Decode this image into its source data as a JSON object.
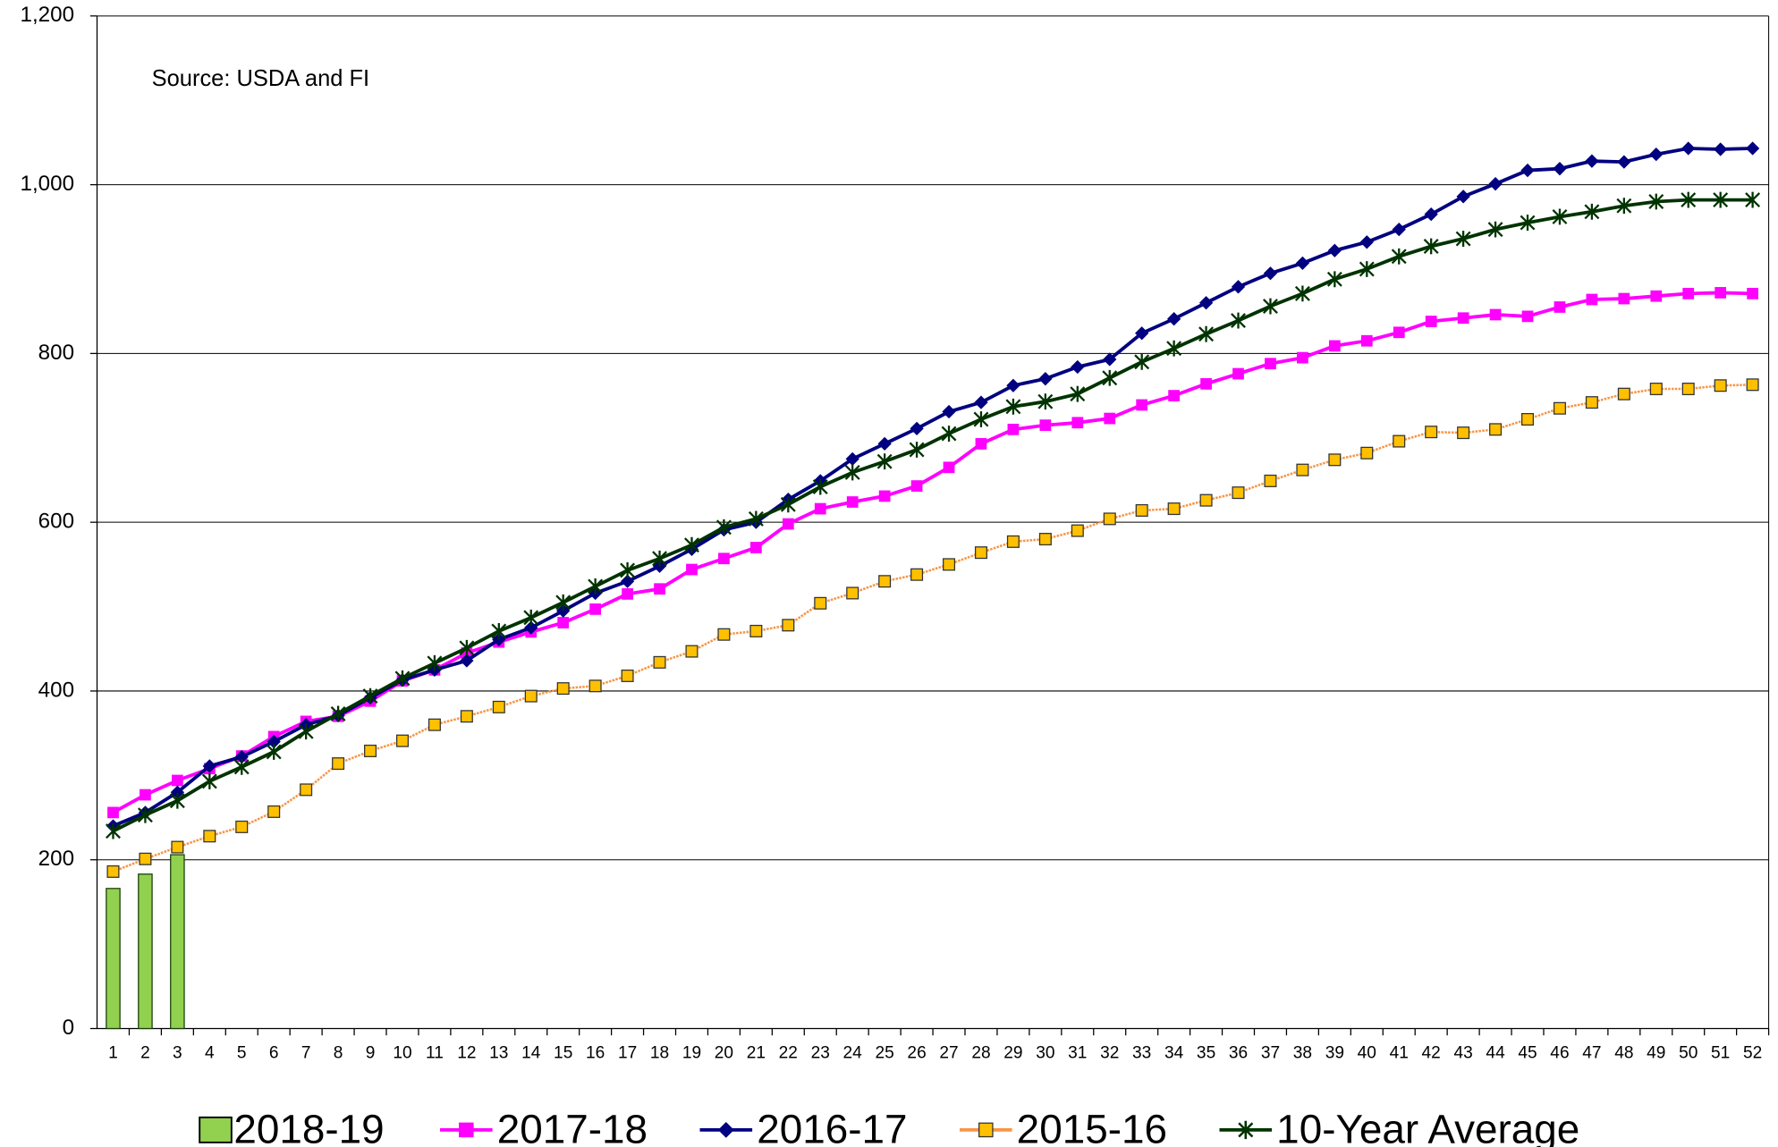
{
  "chart_data": {
    "type": "line",
    "annotation": "Source: USDA and FI",
    "categories": [
      "1",
      "2",
      "3",
      "4",
      "5",
      "6",
      "7",
      "8",
      "9",
      "10",
      "11",
      "12",
      "13",
      "14",
      "15",
      "16",
      "17",
      "18",
      "19",
      "20",
      "21",
      "22",
      "23",
      "24",
      "25",
      "26",
      "27",
      "28",
      "29",
      "30",
      "31",
      "32",
      "33",
      "34",
      "35",
      "36",
      "37",
      "38",
      "39",
      "40",
      "41",
      "42",
      "43",
      "44",
      "45",
      "46",
      "47",
      "48",
      "49",
      "50",
      "51",
      "52"
    ],
    "ylim": [
      0,
      1200
    ],
    "yticks": [
      0,
      200,
      400,
      600,
      800,
      {
        "value": 1000,
        "label": "1,000"
      },
      {
        "value": 1200,
        "label": "1,200"
      }
    ],
    "grid": true,
    "legend": "bottom",
    "series": [
      {
        "name": "2018-19",
        "type": "bar",
        "color": "#92d050",
        "values": [
          166,
          183,
          206,
          null,
          null,
          null,
          null,
          null,
          null,
          null,
          null,
          null,
          null,
          null,
          null,
          null,
          null,
          null,
          null,
          null,
          null,
          null,
          null,
          null,
          null,
          null,
          null,
          null,
          null,
          null,
          null,
          null,
          null,
          null,
          null,
          null,
          null,
          null,
          null,
          null,
          null,
          null,
          null,
          null,
          null,
          null,
          null,
          null,
          null,
          null,
          null,
          null
        ]
      },
      {
        "name": "2017-18",
        "type": "line",
        "marker": "square",
        "color": "#ff00ff",
        "values": [
          256,
          277,
          294,
          308,
          323,
          346,
          364,
          370,
          388,
          412,
          425,
          445,
          458,
          470,
          481,
          497,
          515,
          521,
          544,
          557,
          570,
          598,
          616,
          624,
          631,
          643,
          665,
          693,
          710,
          715,
          718,
          723,
          739,
          750,
          764,
          776,
          788,
          795,
          809,
          815,
          825,
          838,
          842,
          846,
          844,
          855,
          864,
          865,
          868,
          871,
          872,
          871
        ]
      },
      {
        "name": "2016-17",
        "type": "line",
        "marker": "diamond",
        "color": "#000080",
        "values": [
          240,
          256,
          280,
          311,
          322,
          340,
          360,
          371,
          392,
          413,
          425,
          436,
          461,
          475,
          495,
          516,
          530,
          548,
          568,
          591,
          600,
          627,
          649,
          675,
          693,
          711,
          731,
          742,
          762,
          770,
          784,
          793,
          824,
          841,
          860,
          879,
          895,
          907,
          922,
          932,
          947,
          965,
          986,
          1001,
          1017,
          1019,
          1028,
          1027,
          1036,
          1043,
          1042,
          1043
        ]
      },
      {
        "name": "2015-16",
        "type": "line",
        "marker": "square",
        "color": "#f79646",
        "marker_color": "#ffc000",
        "values": [
          186,
          201,
          215,
          228,
          239,
          257,
          283,
          314,
          329,
          341,
          360,
          370,
          381,
          394,
          403,
          406,
          418,
          434,
          447,
          467,
          471,
          478,
          504,
          516,
          530,
          538,
          550,
          564,
          577,
          580,
          590,
          604,
          614,
          616,
          626,
          635,
          649,
          662,
          674,
          682,
          696,
          707,
          706,
          710,
          722,
          735,
          742,
          752,
          758,
          758,
          762,
          763
        ]
      },
      {
        "name": "10-Year Average",
        "type": "line",
        "marker": "star",
        "color": "#003300",
        "values": [
          234,
          253,
          270,
          293,
          310,
          328,
          352,
          373,
          394,
          415,
          433,
          451,
          471,
          487,
          505,
          524,
          543,
          557,
          573,
          594,
          604,
          621,
          642,
          659,
          672,
          686,
          705,
          722,
          737,
          743,
          752,
          771,
          790,
          806,
          823,
          839,
          856,
          871,
          888,
          900,
          915,
          927,
          936,
          947,
          955,
          962,
          968,
          975,
          980,
          982,
          982,
          982
        ]
      }
    ]
  }
}
